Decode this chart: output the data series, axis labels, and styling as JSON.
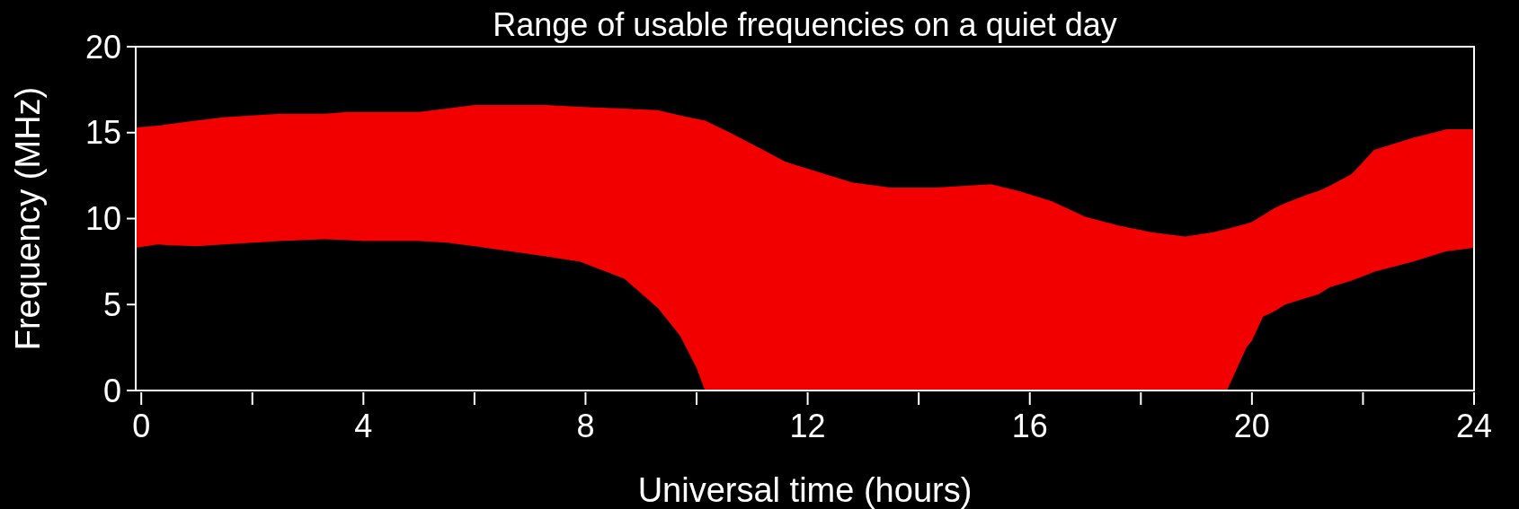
{
  "chart_data": {
    "type": "area",
    "title": "Range of usable frequencies on a quiet day",
    "xlabel": "Universal time (hours)",
    "ylabel": "Frequency (MHz)",
    "xlim": [
      -0.1,
      24
    ],
    "ylim": [
      0,
      20
    ],
    "xticks": [
      0,
      {
        "value": 2,
        "label": null
      },
      4,
      {
        "value": 6,
        "label": null
      },
      8,
      {
        "value": 10,
        "label": null
      },
      12,
      {
        "value": 14,
        "label": null
      },
      16,
      {
        "value": 18,
        "label": null
      },
      20,
      {
        "value": 22,
        "label": null
      },
      24
    ],
    "yticks": [
      0,
      5,
      10,
      15,
      20
    ],
    "series": [
      {
        "color": "#f20000",
        "x": [
          -0.1,
          0.3,
          0.5,
          1,
          1.5,
          2.5,
          3.3,
          3.7,
          4,
          5,
          5.5,
          6,
          7.3,
          7.9,
          8.7,
          9.3,
          9.7,
          10,
          10.15,
          10.6,
          11.2,
          11.6,
          12.2,
          12.8,
          13.5,
          14.3,
          15.3,
          15.8,
          16.4,
          17,
          17.6,
          18.2,
          18.8,
          19.3,
          19.55,
          19.9,
          20,
          20.2,
          20.4,
          20.6,
          21,
          21.2,
          21.4,
          21.8,
          22.2,
          22.9,
          23.4,
          23.5,
          24
        ],
        "values": [
          15.3,
          15.4,
          15.5,
          15.7,
          15.9,
          16.1,
          16.1,
          16.2,
          16.2,
          16.2,
          16.4,
          16.6,
          16.6,
          16.5,
          16.4,
          16.3,
          16.0,
          15.8,
          15.7,
          15.0,
          14.0,
          13.3,
          12.7,
          12.1,
          11.8,
          11.8,
          12.0,
          11.6,
          11.0,
          10.1,
          9.6,
          9.2,
          8.95,
          9.2,
          9.4,
          9.7,
          9.8,
          10.2,
          10.6,
          10.9,
          11.4,
          11.6,
          11.9,
          12.6,
          14.0,
          14.7,
          15.1,
          15.2,
          15.2
        ]
      },
      {
        "x": [
          -0.1,
          0.3,
          0.5,
          1,
          1.5,
          2.5,
          3.3,
          3.7,
          4,
          5,
          5.5,
          6,
          7.3,
          7.9,
          8.7,
          9.3,
          9.7,
          10,
          10.15,
          10.6,
          11.2,
          11.6,
          12.2,
          12.8,
          13.5,
          14.3,
          15.3,
          15.8,
          16.4,
          17,
          17.6,
          18.2,
          18.8,
          19.3,
          19.55,
          19.9,
          20,
          20.2,
          20.4,
          20.6,
          21,
          21.2,
          21.4,
          21.8,
          22.2,
          22.9,
          23.4,
          23.5,
          24
        ],
        "color": "#000000",
        "values": [
          8.3,
          8.5,
          8.45,
          8.4,
          8.5,
          8.7,
          8.8,
          8.75,
          8.7,
          8.7,
          8.6,
          8.4,
          7.8,
          7.5,
          6.5,
          4.8,
          3.2,
          1.3,
          0,
          0,
          0,
          0,
          0,
          0,
          0,
          0,
          0,
          0,
          0,
          0,
          0,
          0,
          0,
          0,
          0,
          2.5,
          2.9,
          4.3,
          4.6,
          5.0,
          5.4,
          5.6,
          6.0,
          6.4,
          6.9,
          7.5,
          8.0,
          8.1,
          8.3
        ]
      }
    ]
  }
}
